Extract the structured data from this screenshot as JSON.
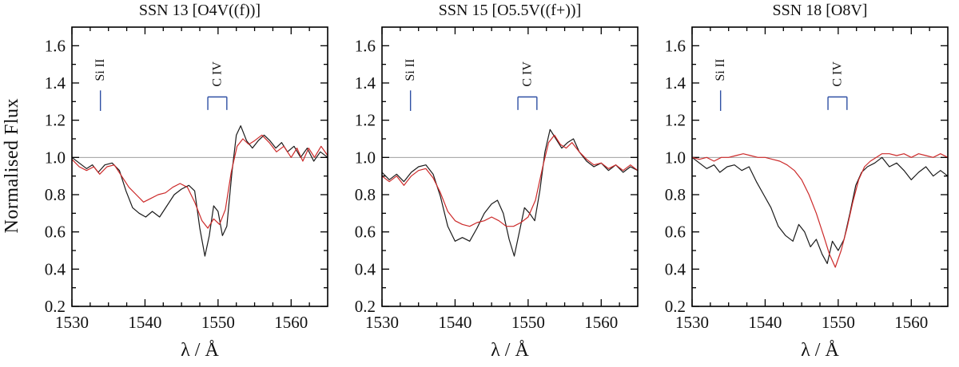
{
  "figure": {
    "ylabel": "Normalised Flux",
    "background": "#ffffff",
    "frame_color": "#000000",
    "continuum_color": "#909090",
    "annotation_color": "#2e4fa3",
    "reference_line_y": 1.0
  },
  "chart_data": [
    {
      "type": "line",
      "title": "SSN 13 [O4V((f))]",
      "xlabel": "λ / Å",
      "ylabel": "Normalised Flux",
      "xlim": [
        1530,
        1565
      ],
      "ylim": [
        0.2,
        1.7
      ],
      "xticks": [
        1530,
        1540,
        1550,
        1560
      ],
      "yticks": [
        0.2,
        0.4,
        0.6,
        0.8,
        1.0,
        1.2,
        1.4,
        1.6
      ],
      "x_minor_step": 2.5,
      "y_minor_step": 0.1,
      "grid": false,
      "legend": "none",
      "reference_line_y": 1.0,
      "annotations": [
        {
          "label": "Si II",
          "kind": "single",
          "x": 1533.9
        },
        {
          "label": "C IV",
          "kind": "doublet",
          "x1": 1548.6,
          "x2": 1551.2
        }
      ],
      "series": [
        {
          "name": "black",
          "color": "#1a1a1a",
          "points": [
            [
              1530,
              1.0
            ],
            [
              1531,
              0.97
            ],
            [
              1532,
              0.94
            ],
            [
              1532.8,
              0.96
            ],
            [
              1533.6,
              0.92
            ],
            [
              1534.5,
              0.96
            ],
            [
              1535.5,
              0.97
            ],
            [
              1536.5,
              0.93
            ],
            [
              1537.4,
              0.82
            ],
            [
              1538.3,
              0.73
            ],
            [
              1539.2,
              0.7
            ],
            [
              1540.1,
              0.68
            ],
            [
              1541,
              0.71
            ],
            [
              1542,
              0.68
            ],
            [
              1543,
              0.74
            ],
            [
              1544,
              0.8
            ],
            [
              1545,
              0.83
            ],
            [
              1546,
              0.85
            ],
            [
              1546.8,
              0.82
            ],
            [
              1547.5,
              0.62
            ],
            [
              1548.2,
              0.47
            ],
            [
              1548.8,
              0.58
            ],
            [
              1549.4,
              0.74
            ],
            [
              1550,
              0.71
            ],
            [
              1550.6,
              0.58
            ],
            [
              1551.2,
              0.63
            ],
            [
              1551.9,
              0.92
            ],
            [
              1552.5,
              1.12
            ],
            [
              1553.1,
              1.17
            ],
            [
              1553.9,
              1.09
            ],
            [
              1554.7,
              1.05
            ],
            [
              1555.5,
              1.09
            ],
            [
              1556.3,
              1.12
            ],
            [
              1557.1,
              1.09
            ],
            [
              1557.9,
              1.05
            ],
            [
              1558.7,
              1.08
            ],
            [
              1559.5,
              1.03
            ],
            [
              1560.4,
              1.06
            ],
            [
              1561.3,
              1.0
            ],
            [
              1562.2,
              1.05
            ],
            [
              1563.1,
              0.98
            ],
            [
              1564,
              1.03
            ],
            [
              1565,
              1.0
            ]
          ]
        },
        {
          "name": "red",
          "color": "#cc2a2a",
          "points": [
            [
              1530,
              0.99
            ],
            [
              1531,
              0.95
            ],
            [
              1532,
              0.93
            ],
            [
              1533,
              0.95
            ],
            [
              1533.8,
              0.91
            ],
            [
              1534.8,
              0.95
            ],
            [
              1535.8,
              0.96
            ],
            [
              1536.8,
              0.9
            ],
            [
              1537.8,
              0.84
            ],
            [
              1538.8,
              0.8
            ],
            [
              1539.8,
              0.76
            ],
            [
              1540.8,
              0.78
            ],
            [
              1541.8,
              0.8
            ],
            [
              1542.8,
              0.81
            ],
            [
              1543.8,
              0.84
            ],
            [
              1544.8,
              0.86
            ],
            [
              1545.8,
              0.84
            ],
            [
              1546.8,
              0.76
            ],
            [
              1547.8,
              0.66
            ],
            [
              1548.6,
              0.62
            ],
            [
              1549.4,
              0.67
            ],
            [
              1550.2,
              0.64
            ],
            [
              1551,
              0.72
            ],
            [
              1551.8,
              0.92
            ],
            [
              1552.6,
              1.06
            ],
            [
              1553.4,
              1.1
            ],
            [
              1554.2,
              1.07
            ],
            [
              1555,
              1.09
            ],
            [
              1556,
              1.12
            ],
            [
              1557,
              1.08
            ],
            [
              1558,
              1.03
            ],
            [
              1559,
              1.06
            ],
            [
              1560,
              1.0
            ],
            [
              1560.8,
              1.05
            ],
            [
              1561.6,
              0.98
            ],
            [
              1562.4,
              1.05
            ],
            [
              1563.2,
              1.0
            ],
            [
              1564.1,
              1.06
            ],
            [
              1565,
              1.01
            ]
          ]
        }
      ]
    },
    {
      "type": "line",
      "title": "SSN 15 [O5.5V((f+))]",
      "xlabel": "λ / Å",
      "ylabel": "Normalised Flux",
      "xlim": [
        1530,
        1565
      ],
      "ylim": [
        0.2,
        1.7
      ],
      "xticks": [
        1530,
        1540,
        1550,
        1560
      ],
      "yticks": [
        0.2,
        0.4,
        0.6,
        0.8,
        1.0,
        1.2,
        1.4,
        1.6
      ],
      "x_minor_step": 2.5,
      "y_minor_step": 0.1,
      "grid": false,
      "legend": "none",
      "reference_line_y": 1.0,
      "annotations": [
        {
          "label": "Si II",
          "kind": "single",
          "x": 1533.9
        },
        {
          "label": "C IV",
          "kind": "doublet",
          "x1": 1548.6,
          "x2": 1551.2
        }
      ],
      "series": [
        {
          "name": "black",
          "color": "#1a1a1a",
          "points": [
            [
              1530,
              0.92
            ],
            [
              1531,
              0.88
            ],
            [
              1532,
              0.91
            ],
            [
              1533,
              0.87
            ],
            [
              1534,
              0.92
            ],
            [
              1535,
              0.95
            ],
            [
              1536,
              0.96
            ],
            [
              1537,
              0.91
            ],
            [
              1538,
              0.79
            ],
            [
              1539,
              0.63
            ],
            [
              1540,
              0.55
            ],
            [
              1541,
              0.57
            ],
            [
              1542,
              0.55
            ],
            [
              1543,
              0.62
            ],
            [
              1544,
              0.7
            ],
            [
              1545,
              0.75
            ],
            [
              1545.8,
              0.77
            ],
            [
              1546.6,
              0.7
            ],
            [
              1547.4,
              0.56
            ],
            [
              1548.1,
              0.47
            ],
            [
              1548.8,
              0.6
            ],
            [
              1549.5,
              0.73
            ],
            [
              1550.2,
              0.7
            ],
            [
              1550.9,
              0.66
            ],
            [
              1551.6,
              0.82
            ],
            [
              1552.3,
              1.03
            ],
            [
              1553,
              1.15
            ],
            [
              1553.8,
              1.1
            ],
            [
              1554.6,
              1.05
            ],
            [
              1555.4,
              1.08
            ],
            [
              1556.2,
              1.1
            ],
            [
              1557,
              1.03
            ],
            [
              1558,
              0.98
            ],
            [
              1559,
              0.95
            ],
            [
              1560,
              0.97
            ],
            [
              1561,
              0.93
            ],
            [
              1562,
              0.96
            ],
            [
              1563,
              0.92
            ],
            [
              1564,
              0.95
            ],
            [
              1565,
              0.93
            ]
          ]
        },
        {
          "name": "red",
          "color": "#cc2a2a",
          "points": [
            [
              1530,
              0.9
            ],
            [
              1531,
              0.87
            ],
            [
              1532,
              0.9
            ],
            [
              1533,
              0.85
            ],
            [
              1534,
              0.9
            ],
            [
              1535,
              0.93
            ],
            [
              1536,
              0.94
            ],
            [
              1537,
              0.89
            ],
            [
              1538,
              0.81
            ],
            [
              1539,
              0.71
            ],
            [
              1540,
              0.66
            ],
            [
              1541,
              0.64
            ],
            [
              1542,
              0.63
            ],
            [
              1543,
              0.65
            ],
            [
              1544,
              0.66
            ],
            [
              1545,
              0.68
            ],
            [
              1546,
              0.66
            ],
            [
              1547,
              0.63
            ],
            [
              1548,
              0.63
            ],
            [
              1549,
              0.65
            ],
            [
              1550,
              0.68
            ],
            [
              1551,
              0.77
            ],
            [
              1552,
              0.95
            ],
            [
              1552.8,
              1.08
            ],
            [
              1553.6,
              1.12
            ],
            [
              1554.4,
              1.07
            ],
            [
              1555.2,
              1.05
            ],
            [
              1556,
              1.08
            ],
            [
              1557,
              1.03
            ],
            [
              1558,
              0.99
            ],
            [
              1559,
              0.96
            ],
            [
              1560,
              0.97
            ],
            [
              1561,
              0.94
            ],
            [
              1562,
              0.96
            ],
            [
              1563,
              0.93
            ],
            [
              1564,
              0.96
            ],
            [
              1565,
              0.93
            ]
          ]
        }
      ]
    },
    {
      "type": "line",
      "title": "SSN 18 [O8V]",
      "xlabel": "λ / Å",
      "ylabel": "Normalised Flux",
      "xlim": [
        1530,
        1565
      ],
      "ylim": [
        0.2,
        1.7
      ],
      "xticks": [
        1530,
        1540,
        1550,
        1560
      ],
      "yticks": [
        0.2,
        0.4,
        0.6,
        0.8,
        1.0,
        1.2,
        1.4,
        1.6
      ],
      "x_minor_step": 2.5,
      "y_minor_step": 0.1,
      "grid": false,
      "legend": "none",
      "reference_line_y": 1.0,
      "annotations": [
        {
          "label": "Si II",
          "kind": "single",
          "x": 1533.9
        },
        {
          "label": "C IV",
          "kind": "doublet",
          "x1": 1548.6,
          "x2": 1551.2
        }
      ],
      "series": [
        {
          "name": "black",
          "color": "#1a1a1a",
          "points": [
            [
              1530,
              1.0
            ],
            [
              1531,
              0.97
            ],
            [
              1532,
              0.94
            ],
            [
              1533,
              0.96
            ],
            [
              1533.8,
              0.92
            ],
            [
              1534.8,
              0.95
            ],
            [
              1535.8,
              0.96
            ],
            [
              1536.8,
              0.93
            ],
            [
              1537.8,
              0.95
            ],
            [
              1538.8,
              0.87
            ],
            [
              1539.8,
              0.8
            ],
            [
              1540.8,
              0.73
            ],
            [
              1541.8,
              0.63
            ],
            [
              1542.8,
              0.58
            ],
            [
              1543.8,
              0.55
            ],
            [
              1544.6,
              0.64
            ],
            [
              1545.4,
              0.6
            ],
            [
              1546.2,
              0.52
            ],
            [
              1547,
              0.56
            ],
            [
              1547.8,
              0.48
            ],
            [
              1548.5,
              0.43
            ],
            [
              1549.2,
              0.55
            ],
            [
              1550,
              0.5
            ],
            [
              1550.8,
              0.56
            ],
            [
              1551.6,
              0.7
            ],
            [
              1552.4,
              0.85
            ],
            [
              1553.2,
              0.92
            ],
            [
              1554,
              0.95
            ],
            [
              1555,
              0.97
            ],
            [
              1556,
              1.0
            ],
            [
              1557,
              0.95
            ],
            [
              1558,
              0.97
            ],
            [
              1559,
              0.93
            ],
            [
              1560,
              0.88
            ],
            [
              1561,
              0.92
            ],
            [
              1562,
              0.95
            ],
            [
              1563,
              0.9
            ],
            [
              1564,
              0.93
            ],
            [
              1565,
              0.9
            ]
          ]
        },
        {
          "name": "red",
          "color": "#cc2a2a",
          "points": [
            [
              1530,
              1.0
            ],
            [
              1531,
              0.99
            ],
            [
              1532,
              1.0
            ],
            [
              1533,
              0.98
            ],
            [
              1534,
              1.0
            ],
            [
              1535,
              1.0
            ],
            [
              1536,
              1.01
            ],
            [
              1537,
              1.02
            ],
            [
              1538,
              1.01
            ],
            [
              1539,
              1.0
            ],
            [
              1540,
              1.0
            ],
            [
              1541,
              0.99
            ],
            [
              1542,
              0.98
            ],
            [
              1543,
              0.96
            ],
            [
              1544,
              0.93
            ],
            [
              1545,
              0.88
            ],
            [
              1546,
              0.8
            ],
            [
              1547,
              0.7
            ],
            [
              1548,
              0.58
            ],
            [
              1548.8,
              0.48
            ],
            [
              1549.6,
              0.41
            ],
            [
              1550.4,
              0.5
            ],
            [
              1551.2,
              0.62
            ],
            [
              1552,
              0.76
            ],
            [
              1552.8,
              0.88
            ],
            [
              1553.6,
              0.95
            ],
            [
              1554.4,
              0.98
            ],
            [
              1555.2,
              1.0
            ],
            [
              1556,
              1.02
            ],
            [
              1557,
              1.02
            ],
            [
              1558,
              1.01
            ],
            [
              1559,
              1.02
            ],
            [
              1560,
              1.0
            ],
            [
              1561,
              1.02
            ],
            [
              1562,
              1.01
            ],
            [
              1563,
              1.0
            ],
            [
              1564,
              1.02
            ],
            [
              1565,
              1.0
            ]
          ]
        }
      ]
    }
  ]
}
